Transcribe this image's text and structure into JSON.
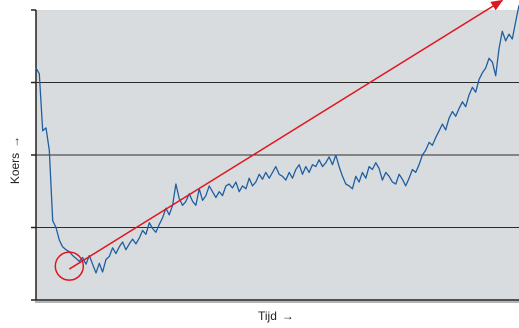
{
  "chart_data": {
    "type": "line",
    "xlabel": "Tijd",
    "ylabel": "Koers",
    "xlabel_arrow": "→",
    "ylabel_arrow": "→",
    "yticks": 5,
    "grid": true,
    "colors": {
      "background": "#d9dcdf",
      "line": "#1f5fa0",
      "trend": "#e0161f",
      "grid": "#2b2b2b"
    },
    "series": [
      {
        "values": [
          240,
          234,
          175,
          178,
          155,
          82,
          75,
          62,
          55,
          52,
          50,
          46,
          43,
          40,
          44,
          37,
          46,
          37,
          28,
          38,
          29,
          42,
          45,
          54,
          48,
          55,
          60,
          52,
          58,
          63,
          58,
          64,
          72,
          68,
          80,
          74,
          70,
          78,
          85,
          95,
          88,
          98,
          120,
          105,
          98,
          102,
          110,
          102,
          98,
          115,
          103,
          108,
          118,
          112,
          106,
          112,
          108,
          118,
          120,
          116,
          122,
          112,
          118,
          115,
          126,
          118,
          122,
          130,
          125,
          132,
          126,
          132,
          138,
          130,
          128,
          124,
          132,
          126,
          135,
          140,
          130,
          138,
          132,
          140,
          138,
          145,
          138,
          142,
          148,
          140,
          150,
          138,
          128,
          120,
          118,
          115,
          128,
          122,
          132,
          126,
          138,
          135,
          142,
          136,
          124,
          132,
          128,
          122,
          120,
          130,
          125,
          118,
          126,
          135,
          132,
          140,
          150,
          155,
          163,
          160,
          168,
          175,
          182,
          176,
          188,
          195,
          190,
          198,
          205,
          200,
          212,
          220,
          215,
          228,
          235,
          240,
          250,
          246,
          232,
          260,
          278,
          268,
          275,
          270,
          288,
          305
        ]
      }
    ],
    "trend": {
      "from": {
        "x": 10,
        "y": 32
      },
      "to": {
        "x": 140,
        "y": 310
      }
    },
    "highlight_point": {
      "x": 10,
      "y": 35
    }
  }
}
